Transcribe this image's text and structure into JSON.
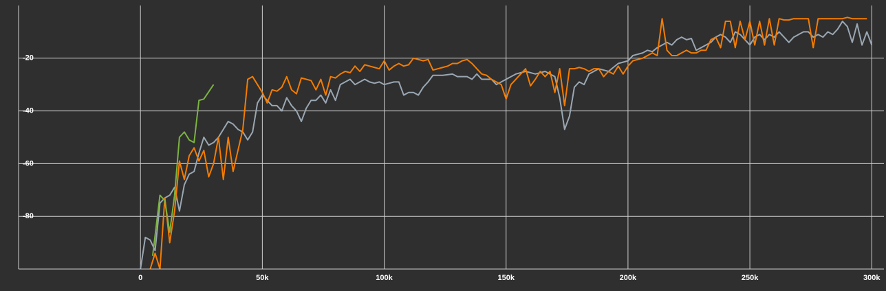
{
  "chart_data": {
    "type": "line",
    "xlim": [
      -50000,
      305000
    ],
    "xticks": [
      0,
      {
        "value": 50000,
        "label": "50k"
      },
      {
        "value": 100000,
        "label": "100k"
      },
      {
        "value": 150000,
        "label": "150k"
      },
      {
        "value": 200000,
        "label": "200k"
      },
      {
        "value": 250000,
        "label": "250k"
      },
      {
        "value": 300000,
        "label": "300k"
      }
    ],
    "ylim": [
      -100,
      0
    ],
    "yticks": [
      -80,
      -60,
      -40,
      -20
    ],
    "grid": true,
    "series": [
      {
        "color": "#9aa7b3",
        "x": [
          0,
          2000,
          4000,
          6000,
          8000,
          10000,
          12000,
          14000,
          16000,
          18000,
          20000,
          22000,
          24000,
          26000,
          28000,
          30000,
          32000,
          34000,
          36000,
          38000,
          40000,
          42000,
          44000,
          46000,
          48000,
          50000,
          52000,
          54000,
          56000,
          58000,
          60000,
          62000,
          64000,
          66000,
          68000,
          70000,
          72000,
          74000,
          76000,
          78000,
          80000,
          82000,
          84000,
          86000,
          88000,
          90000,
          92000,
          94000,
          96000,
          98000,
          100000,
          102000,
          104000,
          106000,
          108000,
          110000,
          112000,
          114000,
          116000,
          118000,
          120000,
          124000,
          128000,
          130000,
          134000,
          136000,
          138000,
          140000,
          144000,
          146000,
          148000,
          150000,
          154000,
          158000,
          162000,
          166000,
          170000,
          172000,
          174000,
          176000,
          178000,
          180000,
          182000,
          184000,
          188000,
          192000,
          196000,
          200000,
          202000,
          206000,
          208000,
          210000,
          212000,
          214000,
          216000,
          218000,
          220000,
          222000,
          224000,
          226000,
          228000,
          230000,
          232000,
          234000,
          236000,
          238000,
          240000,
          242000,
          244000,
          246000,
          248000,
          250000,
          252000,
          254000,
          256000,
          258000,
          260000,
          262000,
          264000,
          266000,
          268000,
          270000,
          272000,
          274000,
          276000,
          278000,
          280000,
          282000,
          284000,
          286000,
          288000,
          290000,
          292000,
          294000,
          296000,
          298000,
          300000
        ],
        "values": [
          -100,
          -88,
          -89,
          -93,
          -75,
          -73,
          -72,
          -69,
          -78,
          -68,
          -64,
          -63,
          -56,
          -50,
          -53,
          -52,
          -50,
          -47,
          -44,
          -45,
          -47,
          -48,
          -51,
          -48,
          -37,
          -34,
          -36,
          -38,
          -38,
          -40,
          -35,
          -38,
          -40,
          -44,
          -39,
          -36,
          -36,
          -34,
          -37,
          -32,
          -36,
          -30,
          -29,
          -28,
          -30,
          -29,
          -28,
          -29,
          -29.5,
          -29,
          -30,
          -29.5,
          -29,
          -29,
          -34,
          -33,
          -33,
          -34,
          -31,
          -29,
          -26.5,
          -26.5,
          -26,
          -27,
          -27,
          -28,
          -26,
          -28,
          -28,
          -30,
          -29,
          -28,
          -26,
          -25,
          -26,
          -25,
          -27,
          -35,
          -47,
          -42,
          -31,
          -29,
          -30,
          -26,
          -24,
          -25,
          -22,
          -21,
          -19,
          -18,
          -17,
          -17.5,
          -16,
          -15,
          -14,
          -15,
          -13,
          -12,
          -13,
          -12.5,
          -17,
          -16,
          -15,
          -14,
          -12,
          -11,
          -12,
          -14,
          -10,
          -11,
          -13,
          -15,
          -12,
          -11,
          -13,
          -11,
          -12,
          -10,
          -12,
          -14,
          -12,
          -11,
          -10,
          -10,
          -12,
          -11,
          -12,
          -10,
          -11,
          -9,
          -6,
          -8,
          -14,
          -7,
          -15,
          -10,
          -15
        ]
      },
      {
        "color": "#f57c00",
        "x": [
          4000,
          6000,
          8000,
          10000,
          12000,
          14000,
          16000,
          18000,
          20000,
          22000,
          24000,
          26000,
          28000,
          30000,
          32000,
          34000,
          36000,
          38000,
          40000,
          42000,
          44000,
          46000,
          48000,
          50000,
          52000,
          54000,
          56000,
          58000,
          60000,
          62000,
          64000,
          66000,
          68000,
          70000,
          72000,
          74000,
          76000,
          78000,
          80000,
          82000,
          84000,
          86000,
          88000,
          90000,
          92000,
          94000,
          96000,
          98000,
          100000,
          102000,
          104000,
          106000,
          108000,
          110000,
          112000,
          114000,
          116000,
          118000,
          120000,
          122000,
          124000,
          126000,
          128000,
          130000,
          132000,
          134000,
          136000,
          138000,
          140000,
          142000,
          144000,
          146000,
          148000,
          150000,
          152000,
          154000,
          156000,
          158000,
          160000,
          162000,
          164000,
          166000,
          168000,
          170000,
          172000,
          174000,
          176000,
          178000,
          180000,
          182000,
          184000,
          186000,
          188000,
          190000,
          192000,
          194000,
          196000,
          198000,
          200000,
          202000,
          204000,
          206000,
          208000,
          210000,
          212000,
          214000,
          216000,
          218000,
          220000,
          222000,
          224000,
          226000,
          228000,
          230000,
          232000,
          234000,
          236000,
          238000,
          240000,
          242000,
          244000,
          246000,
          248000,
          250000,
          252000,
          254000,
          256000,
          258000,
          260000,
          262000,
          264000,
          266000,
          268000,
          270000,
          272000,
          274000,
          276000,
          278000,
          280000,
          282000,
          284000,
          286000,
          288000,
          290000,
          292000,
          294000,
          296000,
          298000
        ],
        "values": [
          -100,
          -94,
          -100,
          -73,
          -90,
          -78,
          -59,
          -66,
          -57,
          -54,
          -59,
          -55,
          -65,
          -60,
          -50,
          -66,
          -50,
          -63,
          -55,
          -47,
          -28,
          -27,
          -30,
          -33,
          -37,
          -32,
          -32.5,
          -31,
          -27,
          -32,
          -33.5,
          -27.5,
          -28,
          -28.5,
          -32,
          -28,
          -34,
          -27,
          -27.5,
          -26,
          -25,
          -25.5,
          -23,
          -25,
          -22.5,
          -23,
          -23.5,
          -24,
          -21,
          -24.5,
          -23,
          -22,
          -23,
          -22.5,
          -20,
          -20.5,
          -21,
          -20.5,
          -24.5,
          -24,
          -23.5,
          -23,
          -22,
          -22,
          -21,
          -20.5,
          -22,
          -24,
          -26,
          -26.5,
          -28,
          -29,
          -30,
          -35.5,
          -30,
          -28,
          -26,
          -24,
          -30.5,
          -28,
          -25,
          -27,
          -25,
          -33,
          -24,
          -38,
          -24,
          -24,
          -23.5,
          -24,
          -25,
          -24,
          -24,
          -27,
          -25,
          -26,
          -23,
          -26,
          -23,
          -21,
          -20.5,
          -20,
          -19,
          -18,
          -19,
          -5,
          -17,
          -19,
          -19,
          -18,
          -17,
          -18,
          -18,
          -17,
          -17,
          -13,
          -12,
          -16,
          -6,
          -6,
          -16,
          -6,
          -13,
          -6,
          -15,
          -6,
          -15,
          -5,
          -15,
          -5,
          -5.5,
          -5.5,
          -5,
          -5,
          -5,
          -5,
          -16,
          -5,
          -5,
          -5,
          -5,
          -5,
          -5,
          -4.5,
          -5,
          -5,
          -5,
          -5
        ]
      },
      {
        "color": "#7cb342",
        "x": [
          5000,
          8000,
          10000,
          12000,
          14000,
          16000,
          18000,
          20000,
          22000,
          24000,
          26000,
          30000
        ],
        "values": [
          -95,
          -72,
          -74,
          -86,
          -72,
          -50,
          -48,
          -51,
          -52,
          -36,
          -35.5,
          -30
        ]
      }
    ]
  }
}
